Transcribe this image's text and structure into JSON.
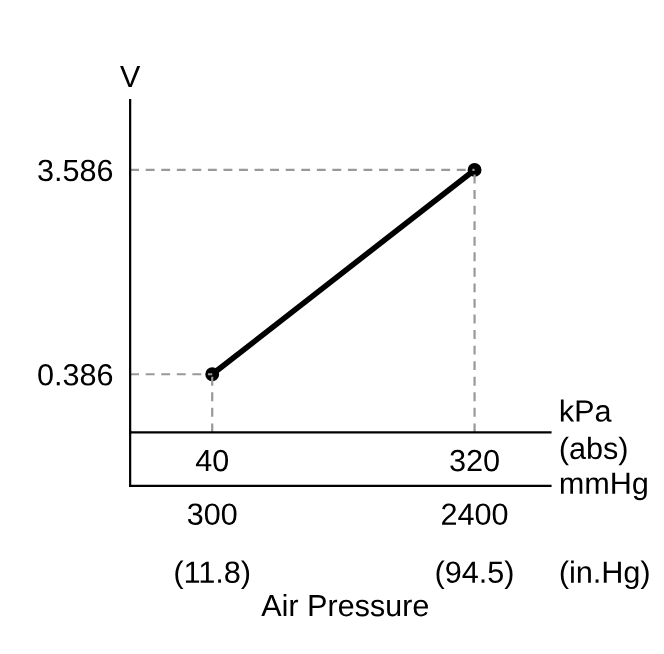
{
  "chart_data": {
    "type": "line",
    "x": [
      40,
      320
    ],
    "series": [
      {
        "color": "#000000",
        "values": [
          0.386,
          3.586
        ]
      }
    ],
    "xlim": [
      -47.6,
      401
    ],
    "ylim": [
      -0.523,
      4.68
    ],
    "xticks": [
      40,
      320
    ],
    "yticks": [
      0.386,
      3.586
    ],
    "x2lim": [
      -357,
      3008
    ],
    "x2ticks": [
      300,
      2400
    ],
    "xlabel": "kPa\n(abs)",
    "x2label": "mmHg",
    "ylabel": "V",
    "annotations": [
      "(11.8)",
      "(94.5)",
      "(in.Hg)",
      "Air Pressure"
    ],
    "marker": "circle",
    "line_style": "solid",
    "ref_lines": [
      {
        "axis": "y",
        "value": 0.386,
        "color": "#999999",
        "line_style": "dashed"
      },
      {
        "axis": "y",
        "value": 3.586,
        "color": "#999999",
        "line_style": "dashed"
      },
      {
        "axis": "x",
        "value": 40,
        "color": "#999999",
        "line_style": "dashed"
      },
      {
        "axis": "x",
        "value": 320,
        "color": "#999999",
        "line_style": "dashed"
      }
    ],
    "legend": false
  }
}
